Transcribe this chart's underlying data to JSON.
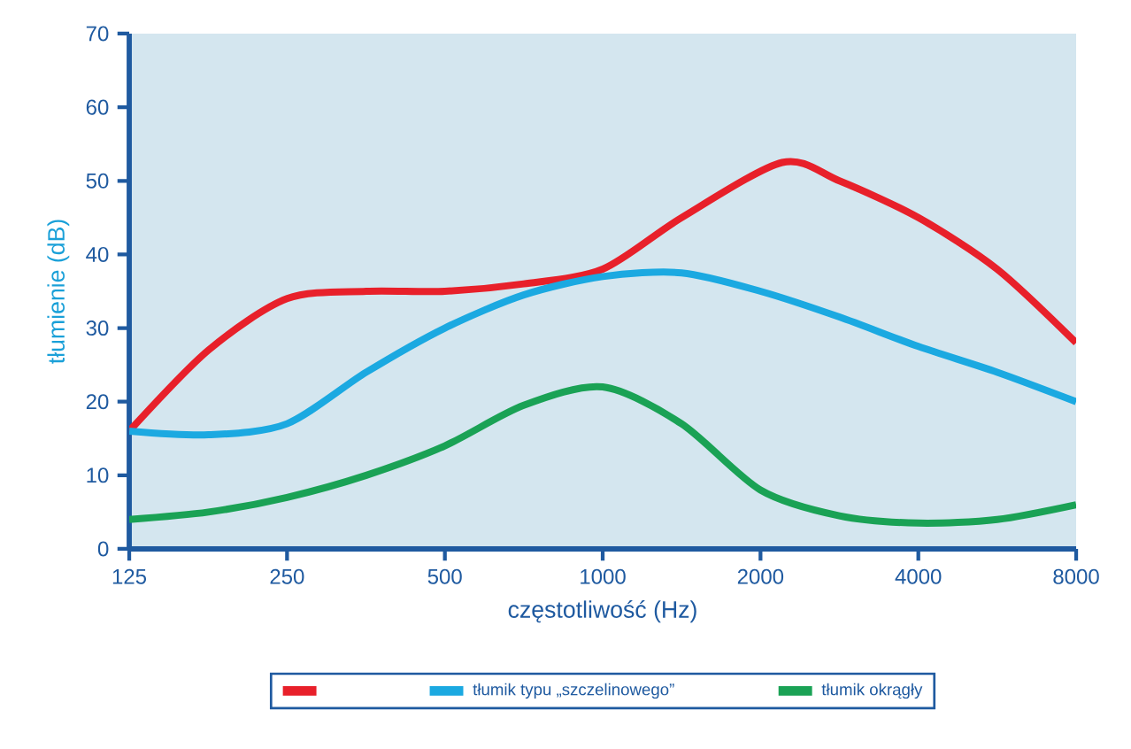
{
  "chart_data": {
    "type": "line",
    "xlabel": "częstotliwość (Hz)",
    "ylabel": "tłumienie (dB)",
    "xlim": [
      125,
      8000
    ],
    "ylim": [
      0,
      70
    ],
    "log": "x",
    "xticks": [
      125,
      250,
      500,
      1000,
      2000,
      4000,
      8000
    ],
    "yticks": [
      0,
      10,
      20,
      30,
      40,
      50,
      60,
      70
    ],
    "grid": false,
    "legend": "bottom",
    "series": [
      {
        "color": "#e8202a",
        "x": [
          125,
          177,
          250,
          354,
          500,
          707,
          1000,
          1414,
          2200,
          2828,
          4000,
          5657,
          8000
        ],
        "values": [
          16,
          27,
          34,
          35,
          35,
          36,
          38,
          45,
          52.5,
          50,
          45,
          38,
          28
        ]
      },
      {
        "name": "tłumik typu „szczelinowego”",
        "color": "#1ba9e1",
        "x": [
          125,
          177,
          250,
          354,
          500,
          707,
          1000,
          1414,
          2000,
          2828,
          4000,
          5657,
          8000
        ],
        "values": [
          16,
          15.5,
          17,
          24,
          30,
          34.5,
          37,
          37.5,
          35,
          31.5,
          27.5,
          24,
          20
        ]
      },
      {
        "name": "tłumik okrągły",
        "color": "#1aa255",
        "x": [
          125,
          177,
          250,
          354,
          500,
          707,
          1000,
          1414,
          2000,
          2828,
          4000,
          5657,
          8000
        ],
        "values": [
          4,
          5,
          7,
          10,
          14,
          19.5,
          22,
          17,
          8,
          4.5,
          3.5,
          4,
          6
        ]
      }
    ]
  }
}
